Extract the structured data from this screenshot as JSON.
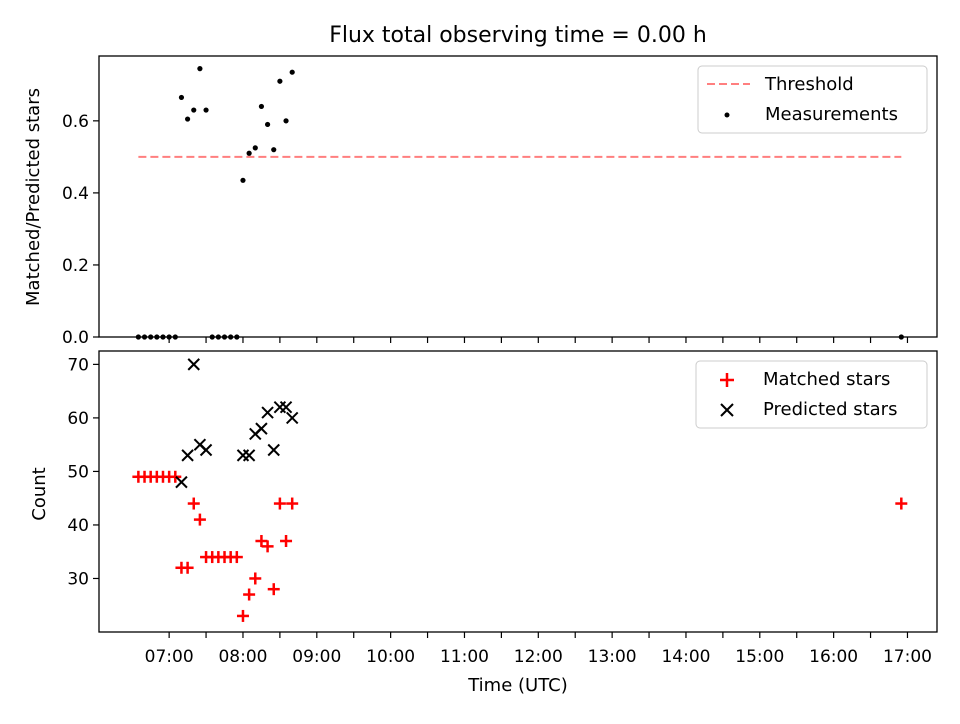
{
  "chart_data": [
    {
      "type": "scatter",
      "title": "Flux total observing time = 0.00 h",
      "xlabel": "",
      "ylabel": "Matched/Predicted stars",
      "ylim": [
        0,
        0.78
      ],
      "yticks": [
        "0.0",
        "0.2",
        "0.4",
        "0.6"
      ],
      "ytick_values": [
        0,
        0.2,
        0.4,
        0.6
      ],
      "legend_position": "top-right",
      "threshold": {
        "name": "Threshold",
        "value": 0.5,
        "x_start": "06:35",
        "x_end": "16:55",
        "color": "#ff7f7f"
      },
      "series": [
        {
          "name": "Measurements",
          "color": "#000000",
          "marker": "dot",
          "x": [
            "06:35",
            "06:40",
            "06:45",
            "06:50",
            "06:55",
            "07:00",
            "07:05",
            "07:10",
            "07:15",
            "07:20",
            "07:25",
            "07:30",
            "07:35",
            "07:40",
            "07:45",
            "07:50",
            "07:55",
            "08:00",
            "08:05",
            "08:10",
            "08:15",
            "08:20",
            "08:25",
            "08:30",
            "08:35",
            "08:40",
            "16:55"
          ],
          "y": [
            0,
            0,
            0,
            0,
            0,
            0,
            0,
            0.665,
            0.605,
            0.63,
            0.745,
            0.63,
            0,
            0,
            0,
            0,
            0,
            0.435,
            0.51,
            0.525,
            0.64,
            0.59,
            0.52,
            0.71,
            0.6,
            0.735,
            0
          ]
        }
      ]
    },
    {
      "type": "scatter",
      "title": "",
      "xlabel": "Time (UTC)",
      "ylabel": "Count",
      "ylim": [
        20,
        72.5
      ],
      "yticks": [
        "30",
        "40",
        "50",
        "60",
        "70"
      ],
      "ytick_values": [
        30,
        40,
        50,
        60,
        70
      ],
      "xticks": [
        "07:00",
        "08:00",
        "09:00",
        "10:00",
        "11:00",
        "12:00",
        "13:00",
        "14:00",
        "15:00",
        "16:00",
        "17:00"
      ],
      "legend_position": "top-right",
      "series": [
        {
          "name": "Matched stars",
          "color": "#ff0000",
          "marker": "plus",
          "x": [
            "06:35",
            "06:40",
            "06:45",
            "06:50",
            "06:55",
            "07:00",
            "07:05",
            "07:10",
            "07:15",
            "07:20",
            "07:25",
            "07:30",
            "07:35",
            "07:40",
            "07:45",
            "07:50",
            "07:55",
            "08:00",
            "08:05",
            "08:10",
            "08:15",
            "08:20",
            "08:25",
            "08:30",
            "08:35",
            "08:40",
            "16:55"
          ],
          "y": [
            49,
            49,
            49,
            49,
            49,
            49,
            49,
            32,
            32,
            44,
            41,
            34,
            34,
            34,
            34,
            34,
            34,
            23,
            27,
            30,
            37,
            36,
            28,
            44,
            37,
            44,
            44
          ]
        },
        {
          "name": "Predicted stars",
          "color": "#000000",
          "marker": "x",
          "x": [
            "07:10",
            "07:15",
            "07:20",
            "07:25",
            "07:30",
            "08:00",
            "08:05",
            "08:10",
            "08:15",
            "08:20",
            "08:25",
            "08:30",
            "08:35",
            "08:40"
          ],
          "y": [
            48,
            53,
            70,
            55,
            54,
            53,
            53,
            57,
            58,
            61,
            54,
            62,
            62,
            60
          ]
        }
      ]
    }
  ],
  "x_axis": {
    "min": "06:03",
    "max": "17:24"
  }
}
